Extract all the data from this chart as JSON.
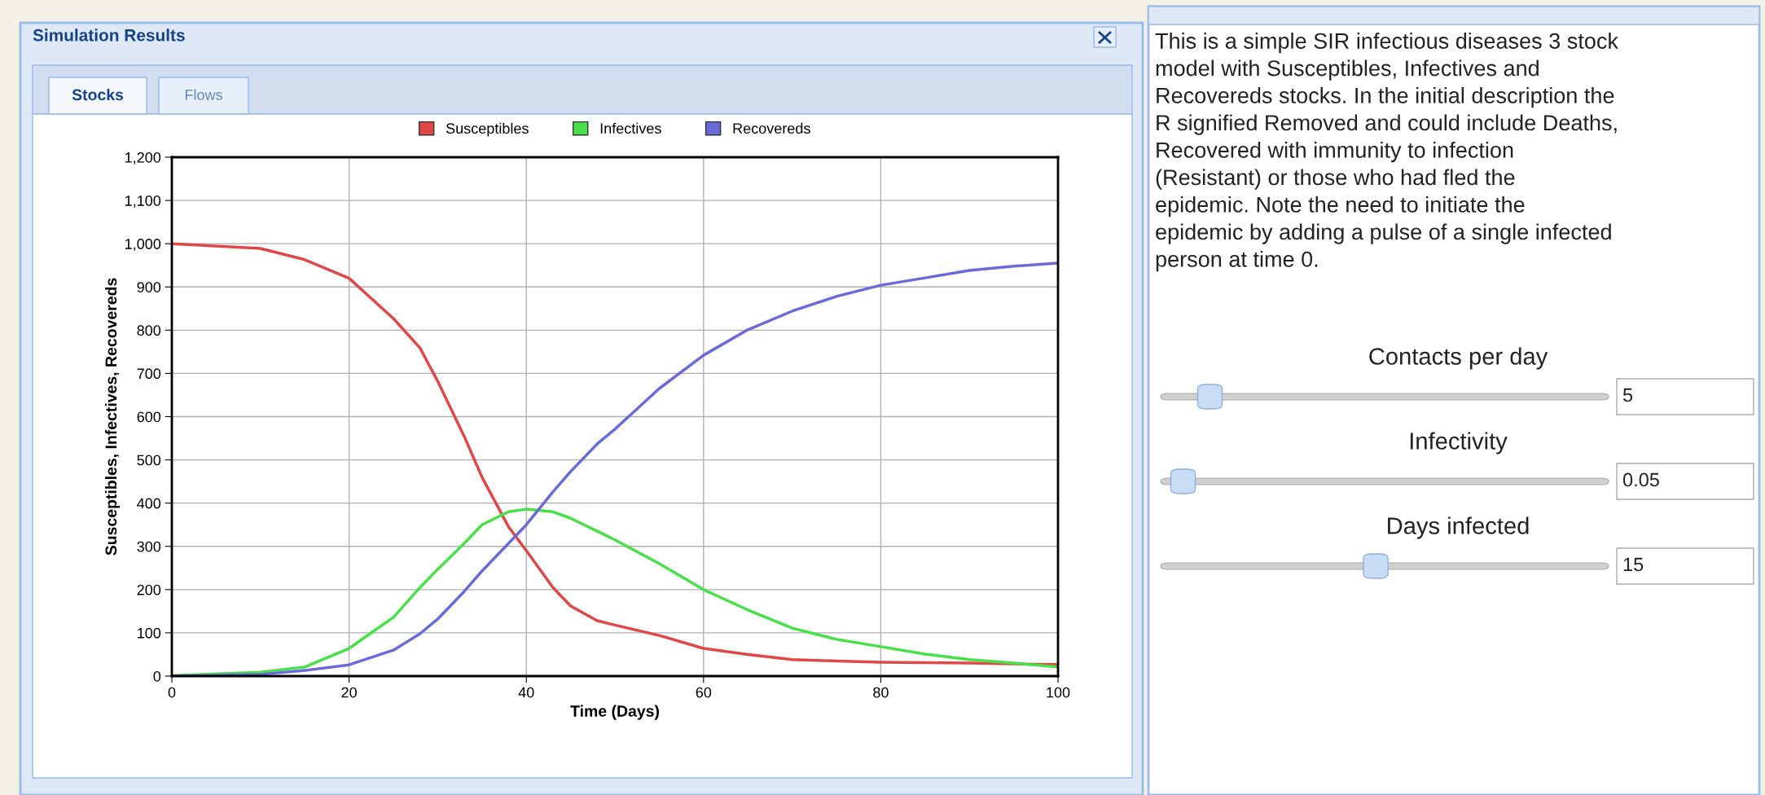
{
  "chart_data": [
    {
      "type": "line",
      "title": "Simulation Results",
      "xlabel": "Time (Days)",
      "ylabel": "Susceptibles, Infectives, Recovereds",
      "annotations": [
        "Stocks",
        "Flows"
      ],
      "x": [
        0,
        10,
        15,
        20,
        25,
        28,
        30,
        33,
        35,
        38,
        40,
        43,
        45,
        48,
        50,
        55,
        60,
        65,
        70,
        75,
        80,
        85,
        90,
        95,
        100
      ],
      "series": [
        {
          "name": "Susceptibles",
          "color": "#e04848",
          "values": [
            1000,
            989,
            963,
            920,
            827,
            759,
            682,
            554,
            460,
            345,
            290,
            205,
            162,
            128,
            118,
            94,
            64,
            50,
            38,
            35,
            32,
            31,
            30,
            28,
            27
          ]
        },
        {
          "name": "Infectives",
          "color": "#48e048",
          "values": [
            1,
            9,
            21,
            64,
            136,
            205,
            247,
            307,
            350,
            380,
            386,
            380,
            365,
            335,
            315,
            260,
            200,
            153,
            111,
            85,
            68,
            51,
            38,
            30,
            21
          ]
        },
        {
          "name": "Recovereds",
          "color": "#6a6ad8",
          "values": [
            0,
            4,
            13,
            26,
            60,
            98,
            132,
            196,
            243,
            307,
            350,
            426,
            473,
            537,
            571,
            665,
            742,
            801,
            844,
            878,
            904,
            921,
            938,
            948,
            955
          ]
        }
      ],
      "xlim": [
        0,
        100
      ],
      "xticks": [
        0,
        20,
        40,
        60,
        80,
        100
      ],
      "ylim": [
        0,
        1200
      ],
      "yticks": [
        0,
        100,
        200,
        300,
        400,
        500,
        600,
        700,
        800,
        900,
        {
          "value": 1000,
          "label": "1,000"
        },
        {
          "value": 1100,
          "label": "1,100"
        },
        {
          "value": 1200,
          "label": "1,200"
        }
      ],
      "grid": true,
      "legend": "top",
      "marker": "none",
      "line_style": "solid"
    },
    {
      "type": "other",
      "annotations": [
        "This is a simple SIR infectious diseases 3 stock\nmodel with Susceptibles, Infectives and\nRecovereds stocks. In the initial description the\nR signified Removed and could include Deaths,\nRecovered with immunity to infection\n(Resistant) or those who had fled the\nepidemic. Note the need to initiate the\nepidemic by adding a pulse of a single infected\nperson at time 0.",
        "Contacts per day",
        "5",
        "Infectivity",
        "0.05",
        "Days infected",
        "15"
      ]
    }
  ]
}
